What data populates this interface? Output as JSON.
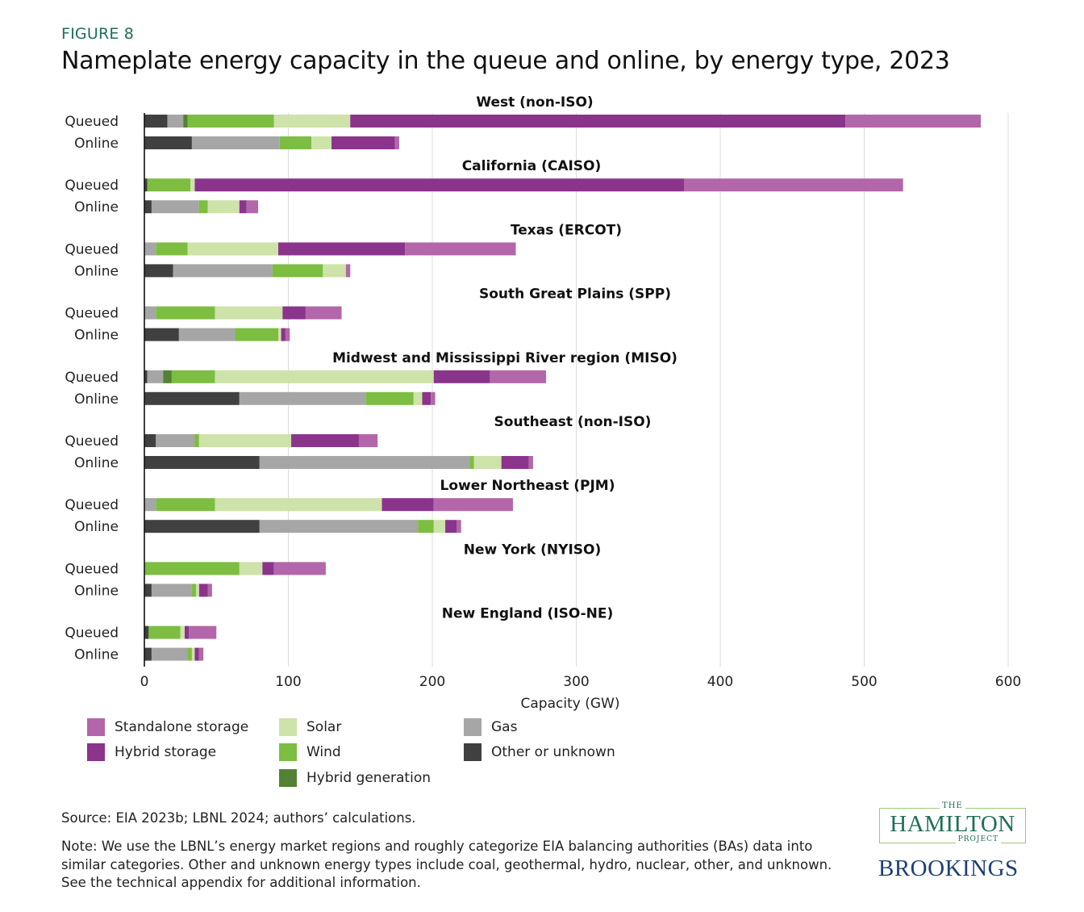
{
  "figure_label": "FIGURE 8",
  "title": "Nameplate energy capacity in the queue and online, by energy type, 2023",
  "chart_data": {
    "type": "bar",
    "orientation": "horizontal",
    "stacked": true,
    "title": "Nameplate energy capacity in the queue and online, by energy type, 2023",
    "xlabel": "Capacity  (GW)",
    "ylabel": "",
    "xlim": [
      0,
      600
    ],
    "xticks": [
      0,
      100,
      200,
      300,
      400,
      500,
      600
    ],
    "grid": "vertical",
    "legend_position": "bottom",
    "row_labels": [
      "Queued",
      "Online"
    ],
    "series": [
      {
        "key": "other",
        "name": "Other or unknown",
        "color": "#404040"
      },
      {
        "key": "gas",
        "name": "Gas",
        "color": "#a6a6a6"
      },
      {
        "key": "hybrid_generation",
        "name": "Hybrid generation",
        "color": "#548235"
      },
      {
        "key": "wind",
        "name": "Wind",
        "color": "#7cbd42"
      },
      {
        "key": "solar",
        "name": "Solar",
        "color": "#cde3a9"
      },
      {
        "key": "hybrid_storage",
        "name": "Hybrid storage",
        "color": "#8b348b"
      },
      {
        "key": "standalone_storage",
        "name": "Standalone storage",
        "color": "#b466aa"
      }
    ],
    "regions": [
      {
        "name": "West (non-ISO)",
        "queued": {
          "other": 16,
          "gas": 11,
          "hybrid_generation": 3,
          "wind": 60,
          "solar": 53,
          "hybrid_storage": 344,
          "standalone_storage": 94
        },
        "online": {
          "other": 33,
          "gas": 61,
          "hybrid_generation": 0,
          "wind": 22,
          "solar": 14,
          "hybrid_storage": 44,
          "standalone_storage": 3
        }
      },
      {
        "name": "California (CAISO)",
        "queued": {
          "other": 2,
          "gas": 0,
          "hybrid_generation": 0,
          "wind": 30,
          "solar": 3,
          "hybrid_storage": 340,
          "standalone_storage": 152
        },
        "online": {
          "other": 5,
          "gas": 33,
          "hybrid_generation": 0,
          "wind": 6,
          "solar": 22,
          "hybrid_storage": 5,
          "standalone_storage": 8
        }
      },
      {
        "name": "Texas (ERCOT)",
        "queued": {
          "other": 0,
          "gas": 8,
          "hybrid_generation": 0,
          "wind": 22,
          "solar": 63,
          "hybrid_storage": 88,
          "standalone_storage": 77
        },
        "online": {
          "other": 20,
          "gas": 69,
          "hybrid_generation": 0,
          "wind": 35,
          "solar": 16,
          "hybrid_storage": 0,
          "standalone_storage": 3
        }
      },
      {
        "name": "South Great Plains (SPP)",
        "queued": {
          "other": 0,
          "gas": 8,
          "hybrid_generation": 0,
          "wind": 41,
          "solar": 47,
          "hybrid_storage": 16,
          "standalone_storage": 25
        },
        "online": {
          "other": 24,
          "gas": 39,
          "hybrid_generation": 0,
          "wind": 30,
          "solar": 2,
          "hybrid_storage": 3,
          "standalone_storage": 3
        }
      },
      {
        "name": "Midwest and Mississippi River region (MISO)",
        "queued": {
          "other": 2,
          "gas": 11,
          "hybrid_generation": 6,
          "wind": 30,
          "solar": 152,
          "hybrid_storage": 39,
          "standalone_storage": 39
        },
        "online": {
          "other": 66,
          "gas": 88,
          "hybrid_generation": 0,
          "wind": 33,
          "solar": 6,
          "hybrid_storage": 6,
          "standalone_storage": 3
        }
      },
      {
        "name": "Southeast (non-ISO)",
        "queued": {
          "other": 8,
          "gas": 27,
          "hybrid_generation": 0,
          "wind": 3,
          "solar": 64,
          "hybrid_storage": 47,
          "standalone_storage": 13
        },
        "online": {
          "other": 80,
          "gas": 146,
          "hybrid_generation": 0,
          "wind": 3,
          "solar": 19,
          "hybrid_storage": 19,
          "standalone_storage": 3
        }
      },
      {
        "name": "Lower Northeast (PJM)",
        "queued": {
          "other": 0,
          "gas": 8,
          "hybrid_generation": 0,
          "wind": 41,
          "solar": 116,
          "hybrid_storage": 36,
          "standalone_storage": 55
        },
        "online": {
          "other": 80,
          "gas": 110,
          "hybrid_generation": 0,
          "wind": 11,
          "solar": 8,
          "hybrid_storage": 8,
          "standalone_storage": 3
        }
      },
      {
        "name": "New York (NYISO)",
        "queued": {
          "other": 0,
          "gas": 0,
          "hybrid_generation": 0,
          "wind": 66,
          "solar": 16,
          "hybrid_storage": 8,
          "standalone_storage": 36
        },
        "online": {
          "other": 5,
          "gas": 28,
          "hybrid_generation": 0,
          "wind": 3,
          "solar": 2,
          "hybrid_storage": 6,
          "standalone_storage": 3
        }
      },
      {
        "name": "New England (ISO-NE)",
        "queued": {
          "other": 3,
          "gas": 0,
          "hybrid_generation": 0,
          "wind": 22,
          "solar": 3,
          "hybrid_storage": 3,
          "standalone_storage": 19
        },
        "online": {
          "other": 5,
          "gas": 25,
          "hybrid_generation": 0,
          "wind": 3,
          "solar": 2,
          "hybrid_storage": 3,
          "standalone_storage": 3
        }
      }
    ]
  },
  "legend": [
    {
      "label": "Standalone storage",
      "color": "#b466aa"
    },
    {
      "label": "Hybrid storage",
      "color": "#8b348b"
    },
    {
      "label": "Solar",
      "color": "#cde3a9"
    },
    {
      "label": "Wind",
      "color": "#7cbd42"
    },
    {
      "label": "Hybrid generation",
      "color": "#548235"
    },
    {
      "label": "Gas",
      "color": "#a6a6a6"
    },
    {
      "label": "Other or unknown",
      "color": "#404040"
    }
  ],
  "source": "Source: EIA 2023b; LBNL 2024; authors’ calculations.",
  "note": "Note: We use the LBNL’s energy market regions and roughly categorize EIA balancing authorities (BAs) data into similar categories. Other and unknown energy types include coal, geothermal, hydro, nuclear, other, and unknown. See the technical appendix for additional information.",
  "logos": {
    "hamilton_the": "THE",
    "hamilton_name": "HAMILTON",
    "hamilton_project": "PROJECT",
    "brookings": "BROOKINGS"
  }
}
